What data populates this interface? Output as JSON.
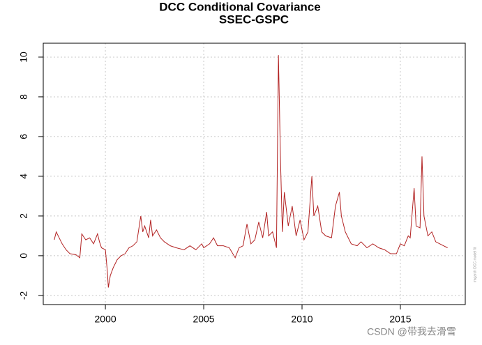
{
  "chart_data": {
    "type": "line",
    "title": "DCC Conditional Covariance",
    "subtitle": "SSEC-GSPC",
    "annotation": "rmgarch  DCC model fit",
    "watermark": "CSDN @带我去滑雪",
    "color": "#b22222",
    "grid": true,
    "xlim": [
      1996.84,
      2018.3
    ],
    "ylim": [
      -2.46,
      10.7
    ],
    "xticks": [
      2000,
      2005,
      2010,
      2015
    ],
    "yticks": [
      -2,
      0,
      2,
      4,
      6,
      8,
      10
    ],
    "x": [
      1997.4,
      1997.5,
      1997.6,
      1997.8,
      1998.0,
      1998.2,
      1998.5,
      1998.7,
      1998.8,
      1999.0,
      1999.2,
      1999.4,
      1999.6,
      1999.7,
      1999.8,
      2000.0,
      2000.1,
      2000.15,
      2000.25,
      2000.4,
      2000.6,
      2000.8,
      2001.0,
      2001.2,
      2001.4,
      2001.6,
      2001.8,
      2001.9,
      2002.0,
      2002.2,
      2002.3,
      2002.4,
      2002.6,
      2002.8,
      2003.0,
      2003.3,
      2003.6,
      2004.0,
      2004.3,
      2004.6,
      2004.9,
      2005.0,
      2005.3,
      2005.5,
      2005.7,
      2006.0,
      2006.3,
      2006.6,
      2006.8,
      2007.0,
      2007.2,
      2007.4,
      2007.6,
      2007.8,
      2008.0,
      2008.2,
      2008.3,
      2008.5,
      2008.7,
      2008.8,
      2008.9,
      2009.0,
      2009.1,
      2009.3,
      2009.5,
      2009.7,
      2009.9,
      2010.1,
      2010.3,
      2010.5,
      2010.6,
      2010.8,
      2011.0,
      2011.2,
      2011.5,
      2011.7,
      2011.9,
      2012.0,
      2012.2,
      2012.5,
      2012.8,
      2013.0,
      2013.3,
      2013.6,
      2013.9,
      2014.2,
      2014.5,
      2014.8,
      2015.0,
      2015.2,
      2015.4,
      2015.5,
      2015.7,
      2015.8,
      2016.0,
      2016.1,
      2016.2,
      2016.4,
      2016.6,
      2016.8,
      2017.0,
      2017.2,
      2017.4
    ],
    "values": [
      0.8,
      1.2,
      1.0,
      0.6,
      0.3,
      0.1,
      0.05,
      -0.1,
      1.1,
      0.8,
      0.9,
      0.6,
      1.1,
      0.7,
      0.4,
      0.3,
      -0.8,
      -1.6,
      -1.0,
      -0.6,
      -0.2,
      0.0,
      0.1,
      0.4,
      0.5,
      0.7,
      2.0,
      1.2,
      1.5,
      0.9,
      1.8,
      1.0,
      1.3,
      0.9,
      0.7,
      0.5,
      0.4,
      0.3,
      0.5,
      0.3,
      0.6,
      0.4,
      0.6,
      0.9,
      0.5,
      0.5,
      0.4,
      -0.1,
      0.4,
      0.5,
      1.6,
      0.6,
      0.8,
      1.7,
      0.9,
      2.2,
      1.0,
      1.2,
      0.4,
      10.1,
      5.0,
      1.2,
      3.2,
      1.5,
      2.5,
      1.0,
      1.8,
      0.8,
      1.2,
      4.0,
      2.0,
      2.5,
      1.2,
      1.0,
      0.9,
      2.5,
      3.2,
      2.0,
      1.2,
      0.6,
      0.5,
      0.7,
      0.4,
      0.6,
      0.4,
      0.3,
      0.1,
      0.1,
      0.6,
      0.5,
      1.0,
      0.9,
      3.4,
      1.5,
      1.4,
      5.0,
      2.0,
      1.0,
      1.2,
      0.7,
      0.6,
      0.5,
      0.4
    ]
  }
}
